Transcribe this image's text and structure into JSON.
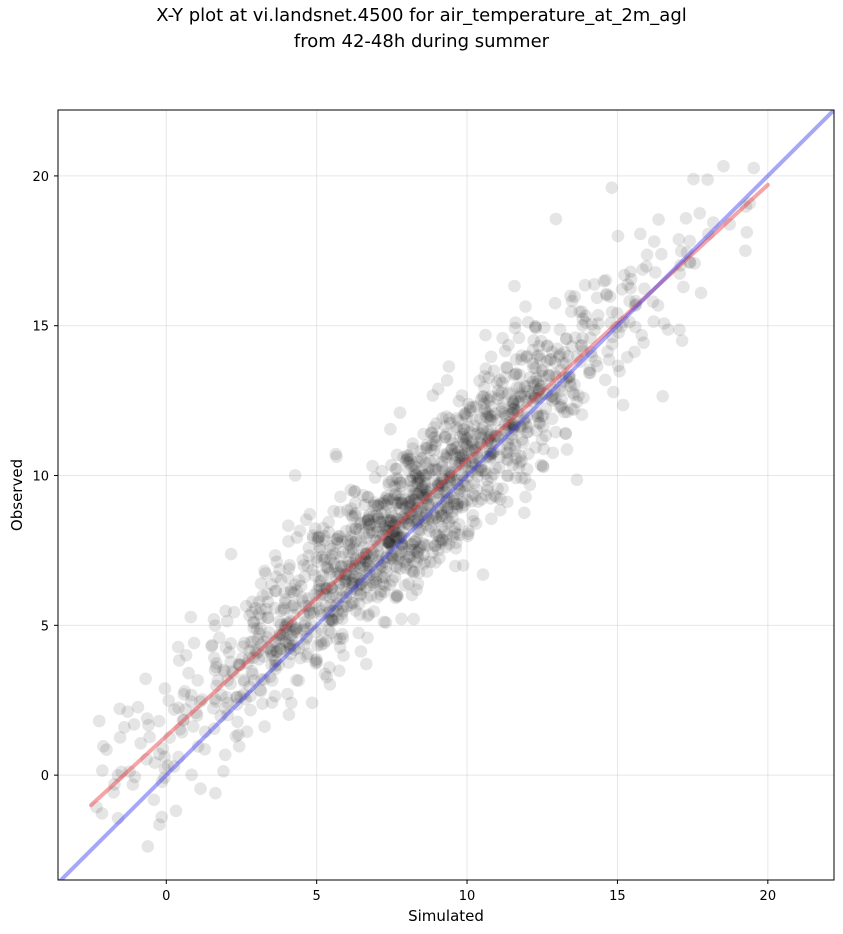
{
  "chart_data": {
    "type": "scatter",
    "title_line1": "X-Y plot at vi.landsnet.4500 for air_temperature_at_2m_agl",
    "title_line2": "from 42-48h during summer",
    "xlabel": "Simulated",
    "ylabel": "Observed",
    "xlim": [
      -3.6,
      22.2
    ],
    "ylim": [
      -3.5,
      22.2
    ],
    "xticks": [
      0,
      5,
      10,
      15,
      20
    ],
    "yticks": [
      0,
      5,
      10,
      15,
      20
    ],
    "grid": true,
    "point_color": "#000000",
    "point_alpha": 0.1,
    "sample_points": {
      "n_points": 1500,
      "x_range": [
        -2.5,
        20
      ],
      "description": "Dense cloud of observed vs simulated temperatures, concentrated along the diagonal"
    },
    "points": [],
    "fit_line": {
      "color": "#e8383d",
      "x": [
        -2.5,
        20
      ],
      "y": [
        -1,
        19.7
      ]
    },
    "identity_line": {
      "color": "#3b3bf0",
      "x": [
        -3.6,
        22.2
      ],
      "y": [
        -3.6,
        22.2
      ]
    }
  }
}
